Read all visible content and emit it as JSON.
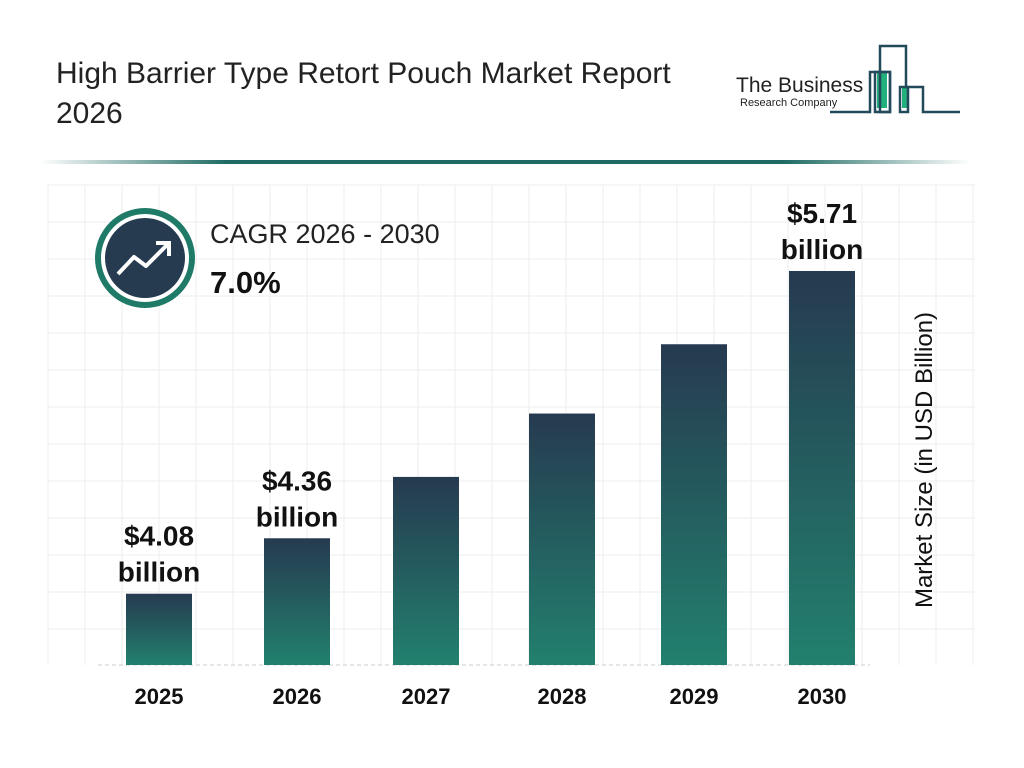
{
  "header": {
    "title": "High Barrier Type Retort Pouch Market Report 2026"
  },
  "logo": {
    "line1": "The Business",
    "line2": "Research Company"
  },
  "cagr": {
    "label": "CAGR 2026 - 2030",
    "value": "7.0%",
    "icon": "trend-up-arrow-icon"
  },
  "colors": {
    "bar_top": "#263a50",
    "bar_bottom": "#22806e",
    "accent": "#1f6b64"
  },
  "chart_data": {
    "type": "bar",
    "categories": [
      "2025",
      "2026",
      "2027",
      "2028",
      "2029",
      "2030"
    ],
    "values": [
      4.08,
      4.36,
      4.67,
      4.99,
      5.34,
      5.71
    ],
    "data_labels": [
      {
        "index": 0,
        "value": "$4.08",
        "unit": "billion"
      },
      {
        "index": 1,
        "value": "$4.36",
        "unit": "billion"
      },
      {
        "index": 5,
        "value": "$5.71",
        "unit": "billion"
      }
    ],
    "xlabel": "",
    "ylabel": "Market Size (in USD Billion)",
    "grid": true
  }
}
